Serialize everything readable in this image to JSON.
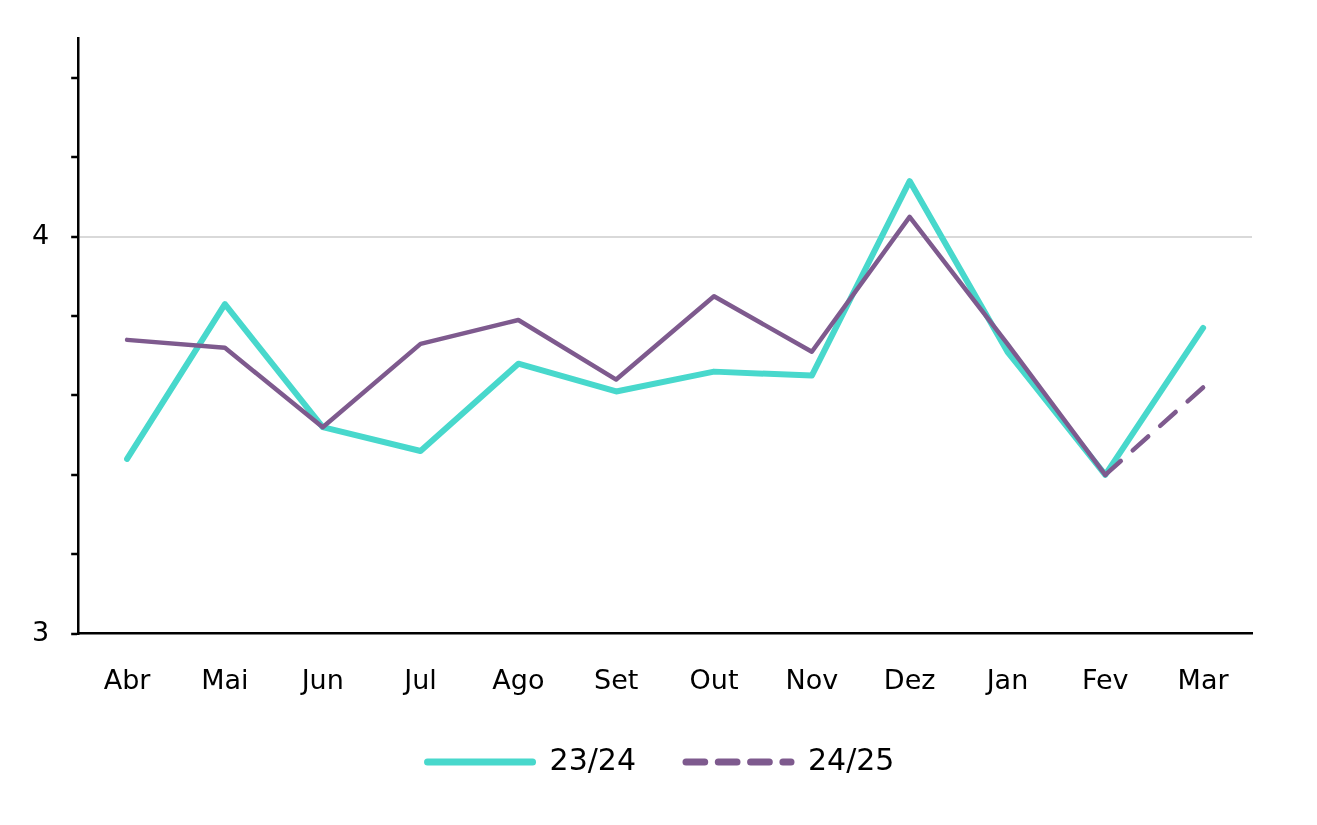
{
  "chart_data": {
    "type": "line",
    "categories": [
      "Abr",
      "Mai",
      "Jun",
      "Jul",
      "Ago",
      "Set",
      "Out",
      "Nov",
      "Dez",
      "Jan",
      "Fev",
      "Mar"
    ],
    "series": [
      {
        "name": "23/24",
        "color": "#48d8cc",
        "line_style": "solid",
        "values": [
          3.44,
          3.83,
          3.52,
          3.46,
          3.68,
          3.61,
          3.66,
          3.65,
          4.14,
          3.71,
          3.4,
          3.77
        ]
      },
      {
        "color": "#7e5a8e",
        "line_style": "solid",
        "values": [
          3.74,
          3.72,
          3.52,
          3.73,
          3.79,
          3.64,
          3.85,
          3.71,
          4.05,
          3.73,
          3.4,
          null
        ]
      },
      {
        "name": "24/25",
        "color": "#7e5a8e",
        "line_style": "dashed",
        "values": [
          null,
          null,
          null,
          null,
          null,
          null,
          null,
          null,
          null,
          null,
          3.4,
          3.62
        ]
      }
    ],
    "ylim": [
      3,
      4.5
    ],
    "yticks": [
      3,
      {
        "value": 3.2,
        "label": null
      },
      {
        "value": 3.4,
        "label": null
      },
      {
        "value": 3.6,
        "label": null
      },
      {
        "value": 3.8,
        "label": null
      },
      4,
      {
        "value": 4.2,
        "label": null
      },
      {
        "value": 4.4,
        "label": null
      }
    ],
    "grid": "y",
    "legend": "bottom",
    "marker": "none"
  }
}
